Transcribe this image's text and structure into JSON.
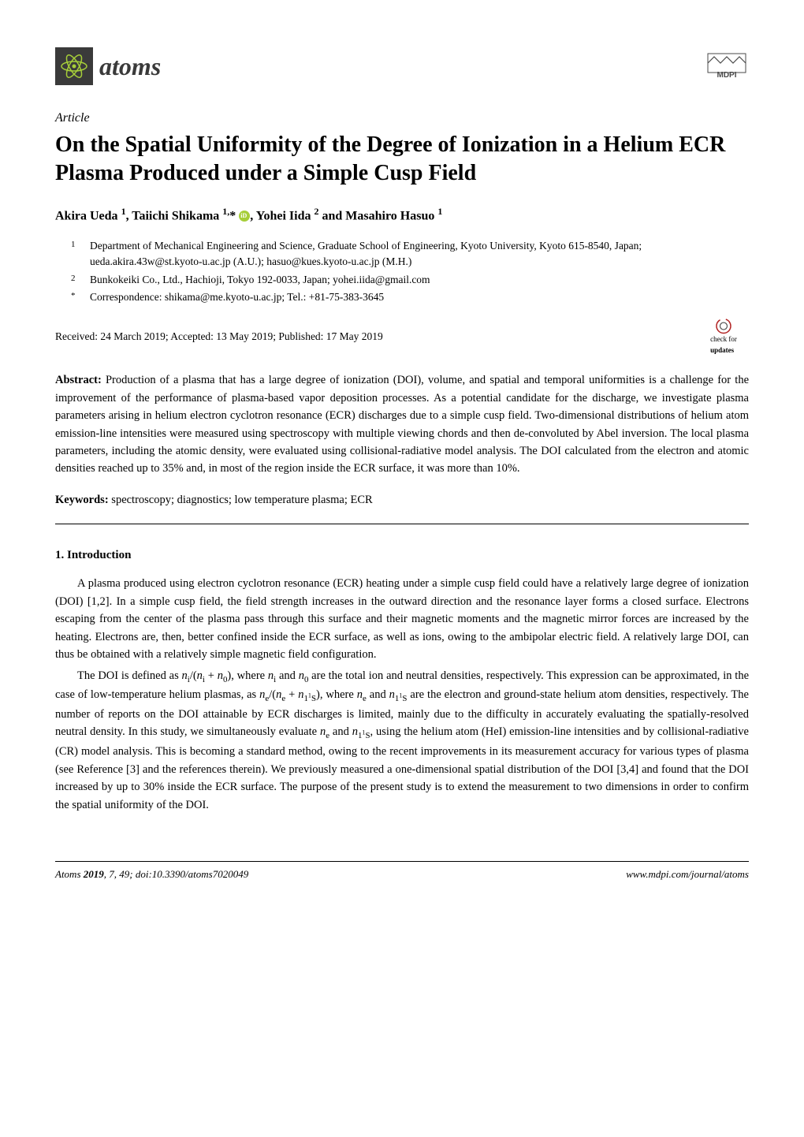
{
  "journal": {
    "logo_text": "atoms",
    "logo_bg": "#3a3a3a",
    "logo_icon_color": "#a6ce39",
    "publisher_logo_text": "MDPI",
    "publisher_logo_color": "#4a4a4a"
  },
  "article_label": "Article",
  "title": "On the Spatial Uniformity of the Degree of Ionization in a Helium ECR Plasma Produced under a Simple Cusp Field",
  "authors_html": "Akira Ueda <sup>1</sup>, Taiichi Shikama <sup>1,</sup>* <span class=\"orcid\"></span>, Yohei Iida <sup>2</sup> and Masahiro Hasuo <sup>1</sup>",
  "affiliations": [
    {
      "num": "1",
      "text": "Department of Mechanical Engineering and Science, Graduate School of Engineering, Kyoto University, Kyoto 615-8540, Japan; ueda.akira.43w@st.kyoto-u.ac.jp (A.U.); hasuo@kues.kyoto-u.ac.jp (M.H.)"
    },
    {
      "num": "2",
      "text": "Bunkokeiki Co., Ltd., Hachioji, Tokyo 192-0033, Japan; yohei.iida@gmail.com"
    },
    {
      "num": "*",
      "text": "Correspondence: shikama@me.kyoto-u.ac.jp; Tel.: +81-75-383-3645"
    }
  ],
  "received_line": "Received: 24 March 2019; Accepted: 13 May 2019; Published: 17 May 2019",
  "check_updates_label1": "check for",
  "check_updates_label2": "updates",
  "abstract_label": "Abstract:",
  "abstract_text": " Production of a plasma that has a large degree of ionization (DOI), volume, and spatial and temporal uniformities is a challenge for the improvement of the performance of plasma-based vapor deposition processes. As a potential candidate for the discharge, we investigate plasma parameters arising in helium electron cyclotron resonance (ECR) discharges due to a simple cusp field. Two-dimensional distributions of helium atom emission-line intensities were measured using spectroscopy with multiple viewing chords and then de-convoluted by Abel inversion. The local plasma parameters, including the atomic density, were evaluated using collisional-radiative model analysis. The DOI calculated from the electron and atomic densities reached up to 35% and, in most of the region inside the ECR surface, it was more than 10%.",
  "keywords_label": "Keywords:",
  "keywords_text": " spectroscopy; diagnostics; low temperature plasma; ECR",
  "section1_heading": "1. Introduction",
  "para1_html": "A plasma produced using electron cyclotron resonance (ECR) heating under a simple cusp field could have a relatively large degree of ionization (DOI) [1,2]. In a simple cusp field, the field strength increases in the outward direction and the resonance layer forms a closed surface. Electrons escaping from the center of the plasma pass through this surface and their magnetic moments and the magnetic mirror forces are increased by the heating. Electrons are, then, better confined inside the ECR surface, as well as ions, owing to the ambipolar electric field. A relatively large DOI, can thus be obtained with a relatively simple magnetic field configuration.",
  "para2_html": "The DOI is defined as <i>n</i><sub>i</sub>/(<i>n</i><sub>i</sub> + <i>n</i><sub>0</sub>), where <i>n</i><sub>i</sub> and <i>n</i><sub>0</sub> are the total ion and neutral densities, respectively. This expression can be approximated, in the case of low-temperature helium plasmas, as <i>n</i><sub>e</sub>/(<i>n</i><sub>e</sub> + <i>n</i><sub>1<sup>1</sup>S</sub>), where <i>n</i><sub>e</sub> and <i>n</i><sub>1<sup>1</sup>S</sub> are the electron and ground-state helium atom densities, respectively. The number of reports on the DOI attainable by ECR discharges is limited, mainly due to the difficulty in accurately evaluating the spatially-resolved neutral density. In this study, we simultaneously evaluate <i>n</i><sub>e</sub> and <i>n</i><sub>1<sup>1</sup>S</sub>, using the helium atom (HeI) emission-line intensities and by collisional-radiative (CR) model analysis. This is becoming a standard method, owing to the recent improvements in its measurement accuracy for various types of plasma (see Reference [3] and the references therein). We previously measured a one-dimensional spatial distribution of the DOI [3,4] and found that the DOI increased by up to 30% inside the ECR surface. The purpose of the present study is to extend the measurement to two dimensions in order to confirm the spatial uniformity of the DOI.",
  "footer": {
    "left_html": "<i>Atoms</i> <b>2019</b>, <i>7</i>, 49; doi:10.3390/atoms7020049",
    "right": "www.mdpi.com/journal/atoms"
  },
  "colors": {
    "text": "#000000",
    "background": "#ffffff",
    "link_blue": "#0066cc",
    "orcid_green": "#a6ce39",
    "mdpi_gray": "#4a4a4a",
    "check_red": "#b22222"
  },
  "fonts": {
    "body_family": "Palatino Linotype, Book Antiqua, Palatino, serif",
    "title_size_pt": 21,
    "body_size_pt": 11,
    "affil_size_pt": 10,
    "footer_size_pt": 10
  }
}
